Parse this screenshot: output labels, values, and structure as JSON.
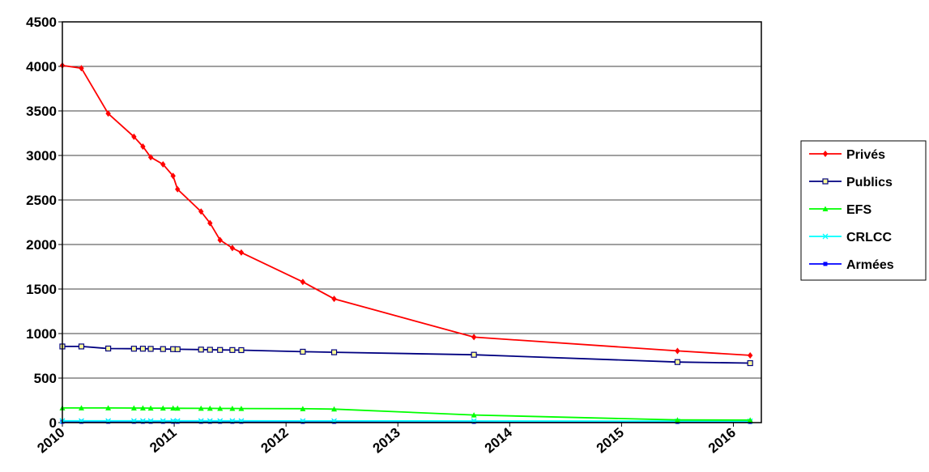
{
  "chart_data": {
    "type": "line",
    "title": "",
    "xlabel": "",
    "ylabel": "",
    "xlim": [
      2010,
      2016.25
    ],
    "ylim": [
      0,
      4500
    ],
    "y_ticks": [
      0,
      500,
      1000,
      1500,
      2000,
      2500,
      3000,
      3500,
      4000,
      4500
    ],
    "y_tick_labels": [
      "0",
      "500",
      "1000",
      "1500",
      "2000",
      "2500",
      "3000",
      "3500",
      "4000",
      "4500"
    ],
    "x_ticks": [
      2010,
      2011,
      2012,
      2013,
      2014,
      2015,
      2016
    ],
    "x_tick_labels": [
      "2010",
      "2011",
      "2012",
      "2013",
      "2014",
      "2015",
      "2016"
    ],
    "grid": "horizontal",
    "legend_position": "right",
    "series": [
      {
        "name": "Privés",
        "color": "#ff0000",
        "marker": "diamond",
        "x": [
          2010.0,
          2010.17,
          2010.41,
          2010.64,
          2010.72,
          2010.79,
          2010.9,
          2010.99,
          2011.03,
          2011.24,
          2011.32,
          2011.41,
          2011.52,
          2011.6,
          2012.15,
          2012.43,
          2013.68,
          2015.5,
          2016.15
        ],
        "y": [
          4010,
          3980,
          3470,
          3210,
          3100,
          2980,
          2900,
          2770,
          2620,
          2370,
          2240,
          2050,
          1960,
          1910,
          1580,
          1390,
          960,
          805,
          755
        ]
      },
      {
        "name": "Publics",
        "color": "#000080",
        "marker": "square",
        "x": [
          2010.0,
          2010.17,
          2010.41,
          2010.64,
          2010.72,
          2010.79,
          2010.9,
          2010.99,
          2011.03,
          2011.24,
          2011.32,
          2011.41,
          2011.52,
          2011.6,
          2012.15,
          2012.43,
          2013.68,
          2015.5,
          2016.15
        ],
        "y": [
          855,
          855,
          832,
          830,
          830,
          828,
          826,
          825,
          824,
          820,
          818,
          816,
          815,
          814,
          796,
          790,
          762,
          680,
          668
        ]
      },
      {
        "name": "EFS",
        "color": "#00ff00",
        "marker": "triangle",
        "x": [
          2010.0,
          2010.17,
          2010.41,
          2010.64,
          2010.72,
          2010.79,
          2010.9,
          2010.99,
          2011.03,
          2011.24,
          2011.32,
          2011.41,
          2011.52,
          2011.6,
          2012.15,
          2012.43,
          2013.68,
          2015.5,
          2016.15
        ],
        "y": [
          165,
          165,
          165,
          164,
          164,
          163,
          162,
          162,
          161,
          160,
          160,
          159,
          159,
          158,
          156,
          152,
          85,
          30,
          28
        ]
      },
      {
        "name": "CRLCC",
        "color": "#00ffff",
        "marker": "x",
        "x": [
          2010.0,
          2010.17,
          2010.41,
          2010.64,
          2010.72,
          2010.79,
          2010.9,
          2010.99,
          2011.03,
          2011.24,
          2011.32,
          2011.41,
          2011.52,
          2011.6,
          2012.15,
          2012.43,
          2013.68,
          2015.5,
          2016.15
        ],
        "y": [
          20,
          20,
          20,
          20,
          20,
          20,
          20,
          20,
          20,
          20,
          20,
          20,
          20,
          20,
          19,
          19,
          18,
          16,
          16
        ]
      },
      {
        "name": "Armées",
        "color": "#0000ff",
        "marker": "square-filled",
        "x": [
          2010.0,
          2010.17,
          2010.41,
          2010.64,
          2010.72,
          2010.79,
          2010.9,
          2010.99,
          2011.03,
          2011.24,
          2011.32,
          2011.41,
          2011.52,
          2011.6,
          2012.15,
          2012.43,
          2013.68,
          2015.5,
          2016.15
        ],
        "y": [
          10,
          10,
          10,
          10,
          10,
          10,
          10,
          10,
          10,
          10,
          10,
          10,
          10,
          10,
          9,
          9,
          9,
          8,
          8
        ]
      }
    ]
  }
}
